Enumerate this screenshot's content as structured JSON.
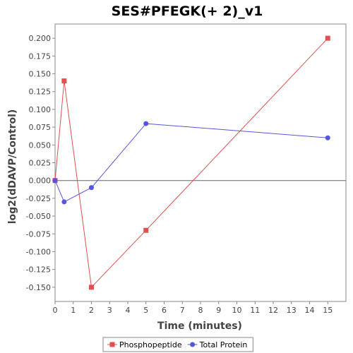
{
  "chart_data": {
    "type": "line",
    "title": "SES#PFEGK(+ 2)_v1",
    "xlabel": "Time (minutes)",
    "ylabel": "log2(dDAVP/Control)",
    "xlim": [
      0,
      16
    ],
    "ylim": [
      -0.17,
      0.22
    ],
    "x_ticks": [
      0,
      1,
      2,
      3,
      4,
      5,
      6,
      7,
      8,
      9,
      10,
      11,
      12,
      13,
      14,
      15
    ],
    "y_ticks": [
      -0.15,
      -0.125,
      -0.1,
      -0.075,
      -0.05,
      -0.025,
      0.0,
      0.025,
      0.05,
      0.075,
      0.1,
      0.125,
      0.15,
      0.175,
      0.2
    ],
    "y_tick_labels": [
      "-0.150",
      "-0.125",
      "-0.100",
      "-0.075",
      "-0.050",
      "-0.025",
      "0.000",
      "0.025",
      "0.050",
      "0.075",
      "0.100",
      "0.125",
      "0.150",
      "0.175",
      "0.200"
    ],
    "zero_line": true,
    "grid": false,
    "legend_position": "bottom",
    "series": [
      {
        "name": "Phosphopeptide",
        "color": "#e05050",
        "marker": "square",
        "x": [
          0,
          0.5,
          2,
          5,
          15
        ],
        "y": [
          0.0,
          0.14,
          -0.15,
          -0.07,
          0.2
        ]
      },
      {
        "name": "Total Protein",
        "color": "#5555e0",
        "marker": "circle",
        "x": [
          0,
          0.5,
          2,
          5,
          15
        ],
        "y": [
          0.0,
          -0.03,
          -0.01,
          0.08,
          0.06
        ]
      }
    ]
  }
}
